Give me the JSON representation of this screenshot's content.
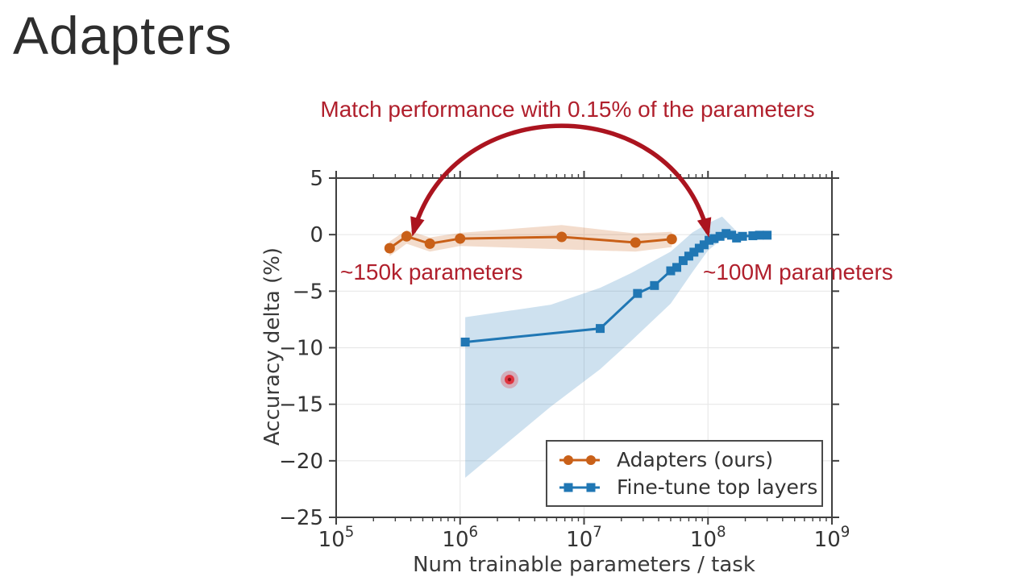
{
  "page": {
    "title": "Adapters"
  },
  "annotations": {
    "match_text": "Match performance with 0.15% of the parameters",
    "left_param": "~150k parameters",
    "right_param": "~100M parameters",
    "text_color": "#b01f2c",
    "arrow_color": "#ab141f",
    "laser_pointer_color": "#e03540"
  },
  "chart_data": {
    "type": "line",
    "title": "",
    "xlabel": "Num trainable parameters / task",
    "ylabel": "Accuracy delta (%)",
    "x_scale": "log",
    "xlim_log": [
      5,
      9
    ],
    "ylim": [
      -25,
      5
    ],
    "grid": true,
    "x_tick_exponents": [
      5,
      6,
      7,
      8,
      9
    ],
    "x_tick_base": "10",
    "y_ticks": [
      5,
      0,
      -5,
      -10,
      -15,
      -20,
      -25
    ],
    "grid_color": "#e8e8e8",
    "spine_color": "#3f3f3f",
    "legend_position": "lower right",
    "series": [
      {
        "name": "Adapters (ours)",
        "color": "#c96018",
        "marker": "circle",
        "x": [
          270000,
          370000,
          570000,
          1000000,
          6600000,
          26000000,
          51000000
        ],
        "y": [
          -1.2,
          -0.15,
          -0.8,
          -0.35,
          -0.2,
          -0.7,
          -0.4
        ],
        "band": {
          "x": [
            270000,
            370000,
            570000,
            1000000,
            6600000,
            26000000,
            51000000
          ],
          "upper": [
            -0.6,
            0.4,
            -0.25,
            0.15,
            0.85,
            0.1,
            0.25
          ],
          "lower": [
            -1.9,
            -0.8,
            -1.5,
            -1.0,
            -1.3,
            -1.5,
            -1.1
          ]
        }
      },
      {
        "name": "Fine-tune top layers",
        "color": "#2077b4",
        "marker": "square",
        "x": [
          1100000,
          13500000,
          27000000,
          37000000,
          50000000,
          56000000,
          63000000,
          70000000,
          77000000,
          85000000,
          93000000,
          102000000,
          112000000,
          125000000,
          140000000,
          155000000,
          170000000,
          190000000,
          230000000,
          260000000,
          300000000
        ],
        "y": [
          -9.5,
          -8.3,
          -5.2,
          -4.5,
          -3.2,
          -2.9,
          -2.3,
          -1.9,
          -1.55,
          -1.2,
          -0.9,
          -0.5,
          -0.35,
          -0.15,
          0.1,
          -0.05,
          -0.3,
          -0.15,
          -0.1,
          -0.05,
          -0.05
        ],
        "band": {
          "x": [
            1100000,
            5400000,
            13500000,
            24000000,
            50000000,
            75000000,
            100000000,
            130000000,
            170000000,
            220000000
          ],
          "upper": [
            -7.3,
            -6.2,
            -4.7,
            -3.4,
            -1.5,
            0.2,
            1.0,
            1.6,
            0.3,
            0.0
          ],
          "lower": [
            -21.5,
            -15.2,
            -11.9,
            -9.4,
            -6.1,
            -3.3,
            -1.4,
            -0.4,
            -0.2,
            -0.1
          ]
        }
      }
    ]
  }
}
